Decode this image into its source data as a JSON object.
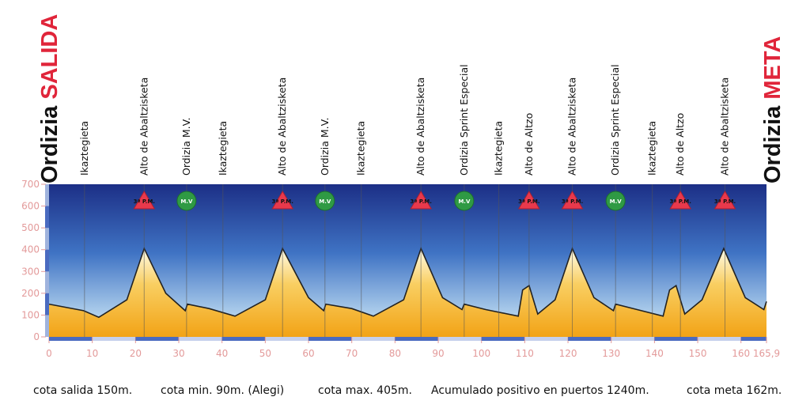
{
  "chart_data": {
    "type": "area",
    "start_title": {
      "place": "Ordizia",
      "label": "SALIDA"
    },
    "end_title": {
      "place": "Ordizia",
      "label": "META"
    },
    "x": [
      0,
      8,
      11.5,
      18,
      22,
      27,
      31.5,
      32,
      37,
      43,
      50,
      54,
      60,
      63.5,
      64,
      70,
      75,
      82,
      86,
      91,
      95.5,
      96,
      101,
      108.5,
      109.5,
      111,
      113,
      117,
      121,
      126,
      130.5,
      131,
      136,
      142,
      143.5,
      145,
      147,
      151,
      156,
      161,
      165.3,
      165.9
    ],
    "values": [
      150,
      120,
      90,
      170,
      405,
      200,
      120,
      150,
      130,
      95,
      170,
      405,
      180,
      120,
      150,
      130,
      95,
      170,
      405,
      180,
      125,
      150,
      125,
      95,
      215,
      235,
      105,
      170,
      405,
      180,
      120,
      150,
      125,
      95,
      215,
      235,
      105,
      170,
      405,
      180,
      125,
      162
    ],
    "xlim": [
      0,
      165.9
    ],
    "xticks": [
      0,
      10,
      20,
      30,
      40,
      50,
      60,
      70,
      80,
      90,
      100,
      110,
      120,
      130,
      140,
      150,
      160,
      {
        "value": 165.9,
        "label": "165,9"
      }
    ],
    "ylim": [
      0,
      700
    ],
    "yticks": [
      0,
      100,
      200,
      300,
      400,
      500,
      600,
      700
    ],
    "checkpoints": [
      {
        "km": 8.2,
        "label": "Ikaztegieta"
      },
      {
        "km": 22,
        "label": "Alto de Abaltzisketa",
        "badge": "3ª P.M."
      },
      {
        "km": 31.8,
        "label": "Ordizia M.V.",
        "badge": "M.V"
      },
      {
        "km": 40.2,
        "label": "Ikaztegieta"
      },
      {
        "km": 54,
        "label": "Alto de Abaltzisketa",
        "badge": "3ª P.M."
      },
      {
        "km": 63.8,
        "label": "Ordizia M.V.",
        "badge": "M.V"
      },
      {
        "km": 72.2,
        "label": "Ikaztegieta"
      },
      {
        "km": 86,
        "label": "Alto de Abaltzisketa",
        "badge": "3ª P.M."
      },
      {
        "km": 96,
        "label": "Ordizia Sprint Especial",
        "badge": "M.V"
      },
      {
        "km": 104,
        "label": "Ikaztegieta"
      },
      {
        "km": 111,
        "label": "Alto de Altzo",
        "badge": "3ª P.M."
      },
      {
        "km": 121,
        "label": "Alto de Abaltzisketa",
        "badge": "3ª P.M."
      },
      {
        "km": 131,
        "label": "Ordizia Sprint Especial",
        "badge": "M.V"
      },
      {
        "km": 139.5,
        "label": "Ikaztegieta"
      },
      {
        "km": 146,
        "label": "Alto de Altzo",
        "badge": "3ª P.M."
      },
      {
        "km": 156.3,
        "label": "Alto de Abaltzisketa",
        "badge": "3ª P.M."
      }
    ],
    "notes": [
      "cota salida 150m.",
      "cota min. 90m. (Alegi)",
      "cota max. 405m.",
      "Acumulado positivo en puertos 1240m.",
      "cota meta 162m."
    ]
  }
}
